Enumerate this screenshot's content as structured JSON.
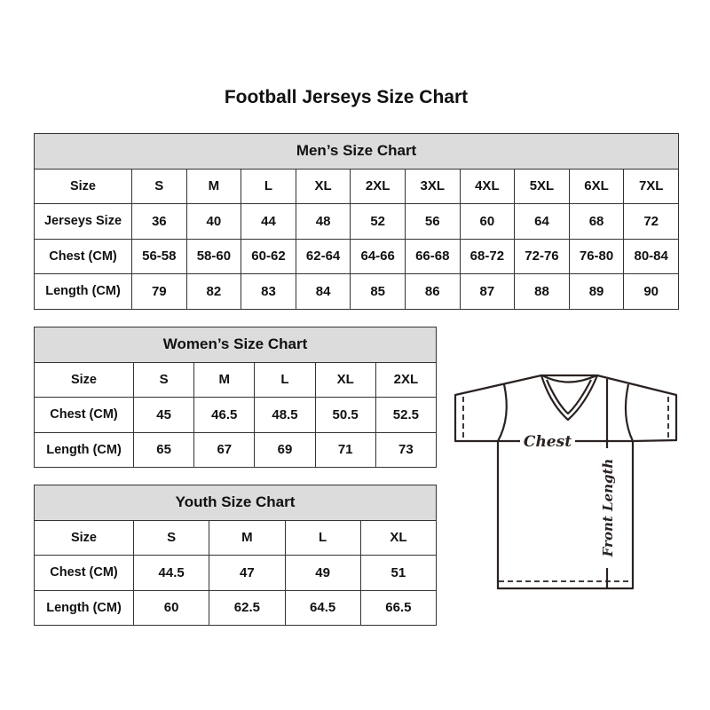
{
  "title": "Football Jerseys Size Chart",
  "tables": {
    "men": {
      "heading": "Men’s Size Chart",
      "rows": [
        {
          "label": "Size",
          "values": [
            "S",
            "M",
            "L",
            "XL",
            "2XL",
            "3XL",
            "4XL",
            "5XL",
            "6XL",
            "7XL"
          ]
        },
        {
          "label": "Jerseys Size",
          "values": [
            "36",
            "40",
            "44",
            "48",
            "52",
            "56",
            "60",
            "64",
            "68",
            "72"
          ]
        },
        {
          "label": "Chest (CM)",
          "values": [
            "56-58",
            "58-60",
            "60-62",
            "62-64",
            "64-66",
            "66-68",
            "68-72",
            "72-76",
            "76-80",
            "80-84"
          ]
        },
        {
          "label": "Length (CM)",
          "values": [
            "79",
            "82",
            "83",
            "84",
            "85",
            "86",
            "87",
            "88",
            "89",
            "90"
          ]
        }
      ]
    },
    "women": {
      "heading": "Women’s Size Chart",
      "rows": [
        {
          "label": "Size",
          "values": [
            "S",
            "M",
            "L",
            "XL",
            "2XL"
          ]
        },
        {
          "label": "Chest (CM)",
          "values": [
            "45",
            "46.5",
            "48.5",
            "50.5",
            "52.5"
          ]
        },
        {
          "label": "Length (CM)",
          "values": [
            "65",
            "67",
            "69",
            "71",
            "73"
          ]
        }
      ]
    },
    "youth": {
      "heading": "Youth Size Chart",
      "rows": [
        {
          "label": "Size",
          "values": [
            "S",
            "M",
            "L",
            "XL"
          ]
        },
        {
          "label": "Chest (CM)",
          "values": [
            "44.5",
            "47",
            "49",
            "51"
          ]
        },
        {
          "label": "Length (CM)",
          "values": [
            "60",
            "62.5",
            "64.5",
            "66.5"
          ]
        }
      ]
    }
  },
  "diagram": {
    "chest_label": "Chest",
    "length_label": "Front Length"
  },
  "colors": {
    "header_bg": "#dcdcdc",
    "border": "#333333",
    "outline": "#2a2220"
  }
}
